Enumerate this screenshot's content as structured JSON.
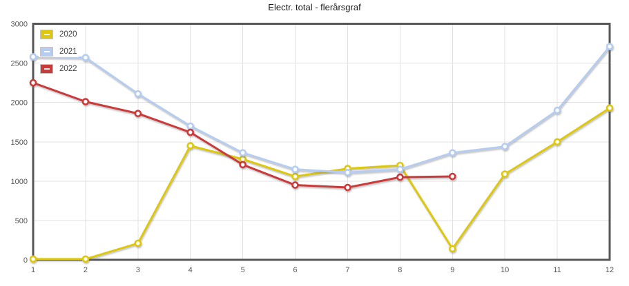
{
  "chart_data": {
    "type": "line",
    "title": "Electr. total - flerårsgraf",
    "x": [
      1,
      2,
      3,
      4,
      5,
      6,
      7,
      8,
      9,
      10,
      11,
      12
    ],
    "xlabel": "",
    "ylabel": "",
    "ylim": [
      0,
      3000
    ],
    "y_ticks": [
      0,
      500,
      1000,
      1500,
      2000,
      2500,
      3000
    ],
    "grid": true,
    "legend_position": "top-left-inside",
    "marker_fill": "#ffffff",
    "series": [
      {
        "name": "2020",
        "color": "#ddc80f",
        "values": [
          10,
          10,
          210,
          1450,
          1280,
          1060,
          1160,
          1200,
          140,
          1090,
          1500,
          1930
        ]
      },
      {
        "name": "2021",
        "color": "#b6cdf0",
        "values": [
          2580,
          2570,
          2110,
          1700,
          1360,
          1150,
          1110,
          1150,
          1360,
          1440,
          1900,
          2710
        ]
      },
      {
        "name": "2022",
        "color": "#c93b3b",
        "values": [
          2250,
          2010,
          1860,
          1620,
          1210,
          950,
          920,
          1050,
          1060,
          null,
          null,
          null
        ]
      }
    ]
  },
  "style_colors": {
    "axis_border": "#565656",
    "gridline": "#e1e1e1",
    "tick_label": "#555555",
    "title_text": "#1a1a1a"
  }
}
